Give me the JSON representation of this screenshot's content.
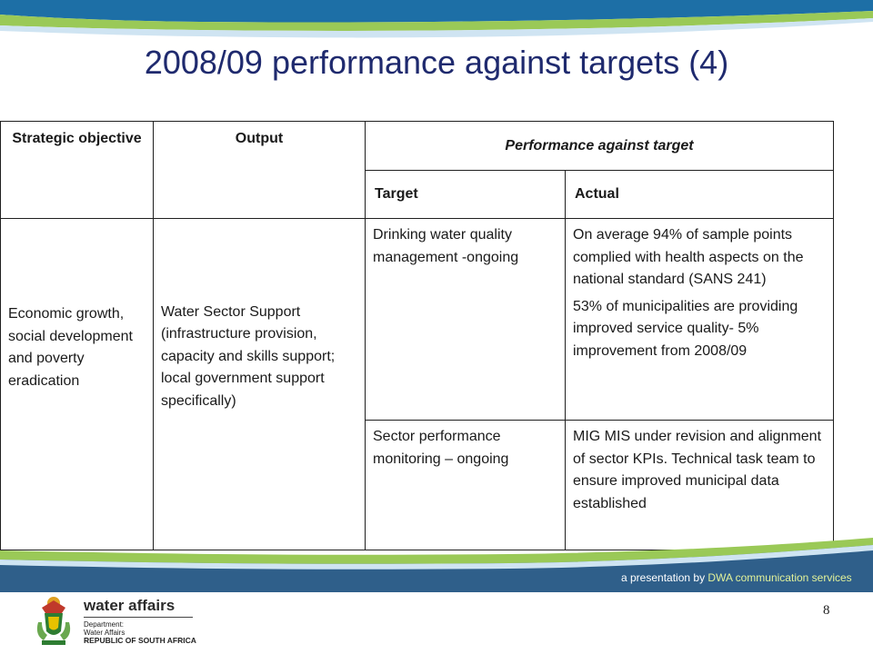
{
  "slide": {
    "title": "2008/09 performance against targets (4)",
    "page_number": "8"
  },
  "table": {
    "headers": {
      "strategic_objective": "Strategic objective",
      "output": "Output",
      "performance": "Performance against target",
      "target": "Target",
      "actual": "Actual"
    },
    "row": {
      "strategic_objective": "Economic growth, social development and poverty eradication",
      "output": "Water Sector Support (infrastructure provision, capacity and skills support; local government support specifically)",
      "items": [
        {
          "target": "Drinking water quality management -ongoing",
          "actual": [
            "On average 94% of sample points complied with health aspects on the national standard (SANS 241)",
            "53% of municipalities are providing improved service quality- 5% improvement from 2008/09"
          ]
        },
        {
          "target": "Sector performance monitoring – ongoing",
          "actual": [
            "MIG MIS under revision and alignment of sector KPIs. Technical task team to ensure improved municipal data established"
          ]
        }
      ]
    }
  },
  "footer": {
    "prefix": "a presentation by ",
    "highlight": "DWA communication services",
    "logo": {
      "name": "water affairs",
      "dept_line1": "Department:",
      "dept_line2": "Water Affairs",
      "dept_line3": "REPUBLIC OF SOUTH AFRICA"
    }
  },
  "colors": {
    "title": "#1f2a6e",
    "band_blue": "#1d6fa6",
    "band_green": "#9ac957",
    "footer_band": "#2f5f8a"
  }
}
